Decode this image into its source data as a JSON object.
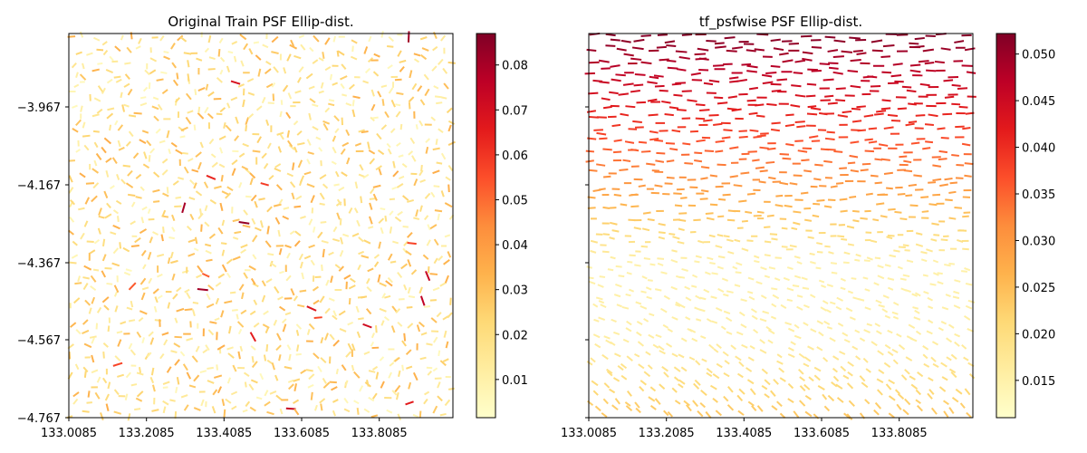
{
  "chart_data": [
    {
      "type": "quiver",
      "title": "Original Train PSF Ellip-dist.",
      "xlim": [
        133.0085,
        133.9985
      ],
      "ylim": [
        -4.767,
        -3.777
      ],
      "xticks": [
        "133.0085",
        "133.2085",
        "133.4085",
        "133.6085",
        "133.8085"
      ],
      "yticks": [
        "-3.967",
        "-4.167",
        "-4.367",
        "-4.567",
        "-4.767"
      ],
      "colorbar": {
        "cmap": "YlOrRd",
        "range": [
          0.0015,
          0.087
        ],
        "ticks": [
          "0.01",
          "0.02",
          "0.03",
          "0.04",
          "0.05",
          "0.06",
          "0.07",
          "0.08"
        ]
      },
      "field": {
        "base_value": 0.015,
        "typical_range": [
          0.005,
          0.035
        ],
        "outliers_max": 0.085,
        "orientation": "random"
      }
    },
    {
      "type": "quiver",
      "title": "tf_psfwise PSF Ellip-dist.",
      "xlim": [
        133.0085,
        133.9985
      ],
      "ylim": [
        -4.767,
        -3.777
      ],
      "xticks": [
        "133.0085",
        "133.2085",
        "133.4085",
        "133.6085",
        "133.8085"
      ],
      "yticks": [
        "-3.967",
        "-4.167",
        "-4.367",
        "-4.567",
        "-4.767"
      ],
      "colorbar": {
        "cmap": "YlOrRd",
        "range": [
          0.011,
          0.0522
        ],
        "ticks": [
          "0.015",
          "0.020",
          "0.025",
          "0.030",
          "0.035",
          "0.040",
          "0.045",
          "0.050"
        ]
      },
      "field": {
        "value_by_y": [
          {
            "y": -3.777,
            "value": 0.052
          },
          {
            "y": -3.967,
            "value": 0.042
          },
          {
            "y": -4.167,
            "value": 0.03
          },
          {
            "y": -4.367,
            "value": 0.015
          },
          {
            "y": -4.567,
            "value": 0.016
          },
          {
            "y": -4.767,
            "value": 0.024
          }
        ],
        "orientation": "horizontal at top, diagonal toward bottom"
      }
    }
  ]
}
